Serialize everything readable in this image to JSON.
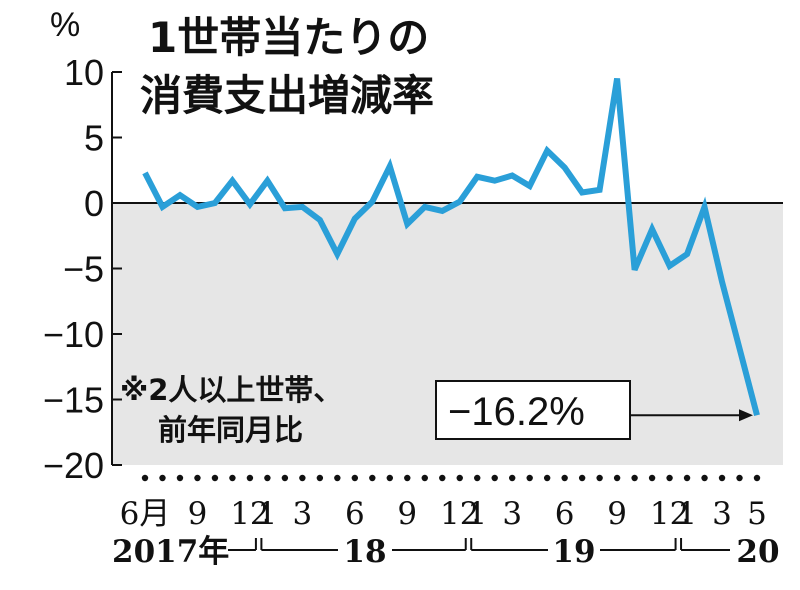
{
  "chart_data": {
    "type": "line",
    "title_lines": [
      "1世帯当たりの",
      "消費支出増減率"
    ],
    "ylabel": "%",
    "ylim": [
      -20,
      10
    ],
    "yticks": [
      10,
      5,
      0,
      -5,
      -10,
      -15,
      -20
    ],
    "ytick_labels": [
      "10",
      "5",
      "0",
      "−5",
      "−10",
      "−15",
      "−20"
    ],
    "note_lines": [
      "※2人以上世帯、",
      "前年同月比"
    ],
    "x": [
      "2017-06",
      "2017-07",
      "2017-08",
      "2017-09",
      "2017-10",
      "2017-11",
      "2017-12",
      "2018-01",
      "2018-02",
      "2018-03",
      "2018-04",
      "2018-05",
      "2018-06",
      "2018-07",
      "2018-08",
      "2018-09",
      "2018-10",
      "2018-11",
      "2018-12",
      "2019-01",
      "2019-02",
      "2019-03",
      "2019-04",
      "2019-05",
      "2019-06",
      "2019-07",
      "2019-08",
      "2019-09",
      "2019-10",
      "2019-11",
      "2019-12",
      "2020-01",
      "2020-02",
      "2020-03",
      "2020-04",
      "2020-05"
    ],
    "values": [
      2.3,
      -0.3,
      0.6,
      -0.3,
      0.0,
      1.7,
      -0.1,
      1.7,
      -0.4,
      -0.3,
      -1.3,
      -3.9,
      -1.2,
      0.1,
      2.8,
      -1.6,
      -0.3,
      -0.6,
      0.1,
      2.0,
      1.7,
      2.1,
      1.3,
      4.0,
      2.7,
      0.8,
      1.0,
      9.5,
      -5.1,
      -2.0,
      -4.8,
      -3.9,
      -0.3,
      -6.0,
      -11.1,
      -16.2
    ],
    "xtick_labels": [
      {
        "month": "2017-06",
        "label": "6月"
      },
      {
        "month": "2017-09",
        "label": "9"
      },
      {
        "month": "2017-12",
        "label": "12"
      },
      {
        "month": "2018-01",
        "label": "1"
      },
      {
        "month": "2018-03",
        "label": "3"
      },
      {
        "month": "2018-06",
        "label": "6"
      },
      {
        "month": "2018-09",
        "label": "9"
      },
      {
        "month": "2018-12",
        "label": "12"
      },
      {
        "month": "2019-01",
        "label": "1"
      },
      {
        "month": "2019-03",
        "label": "3"
      },
      {
        "month": "2019-06",
        "label": "6"
      },
      {
        "month": "2019-09",
        "label": "9"
      },
      {
        "month": "2019-12",
        "label": "12"
      },
      {
        "month": "2020-01",
        "label": "1"
      },
      {
        "month": "2020-03",
        "label": "3"
      },
      {
        "month": "2020-05",
        "label": "5"
      }
    ],
    "year_labels": [
      {
        "label": "2017年",
        "from": "2017-06",
        "to": "2017-12"
      },
      {
        "label": "18",
        "from": "2018-01",
        "to": "2018-12"
      },
      {
        "label": "19",
        "from": "2019-01",
        "to": "2019-12"
      },
      {
        "label": "20",
        "from": "2020-01",
        "to": "2020-05"
      }
    ],
    "callout": {
      "text": "−16.2%",
      "points_to": "2020-05"
    },
    "negative_region_shaded": true,
    "colors": {
      "line": "#2a9fd8",
      "negative_fill": "#e6e6e6",
      "axis": "#111111",
      "text": "#111111"
    }
  }
}
